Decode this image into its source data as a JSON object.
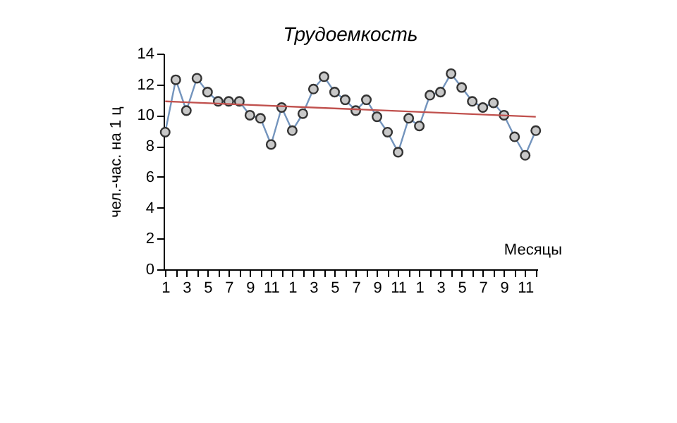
{
  "chart_data": {
    "type": "line",
    "title": "Трудоемкость",
    "xlabel": "Месяцы",
    "ylabel": "чел.-час. на 1 ц",
    "categories": [
      "1",
      null,
      "3",
      null,
      "5",
      null,
      "7",
      null,
      "9",
      null,
      "11",
      null,
      "1",
      null,
      "3",
      null,
      "5",
      null,
      "7",
      null,
      "9",
      null,
      "11",
      null,
      "1",
      null,
      "3",
      null,
      "5",
      null,
      "7",
      null,
      "9",
      null,
      "11",
      null
    ],
    "series": [
      {
        "color": "#7394bd",
        "marker": "circle",
        "values": [
          8.9,
          12.3,
          10.3,
          12.4,
          11.5,
          10.9,
          10.9,
          10.9,
          10.0,
          9.8,
          8.1,
          10.5,
          9.0,
          10.1,
          11.7,
          12.5,
          11.5,
          11.0,
          10.3,
          11.0,
          9.9,
          8.9,
          7.6,
          9.8,
          9.3,
          11.3,
          11.5,
          12.7,
          11.8,
          10.9,
          10.5,
          10.8,
          10.0,
          8.6,
          7.4,
          9.0
        ]
      },
      {
        "type": "line",
        "color": "#c0504d",
        "marker": "none",
        "values": [
          10.9,
          null,
          null,
          null,
          null,
          null,
          null,
          null,
          null,
          null,
          null,
          null,
          null,
          null,
          null,
          null,
          null,
          null,
          null,
          null,
          null,
          null,
          null,
          null,
          null,
          null,
          null,
          null,
          null,
          null,
          null,
          null,
          null,
          null,
          null,
          9.9
        ]
      }
    ],
    "ylim": [
      0,
      14
    ],
    "yticks": [
      0,
      2,
      4,
      6,
      8,
      10,
      12,
      14
    ],
    "grid": false
  }
}
